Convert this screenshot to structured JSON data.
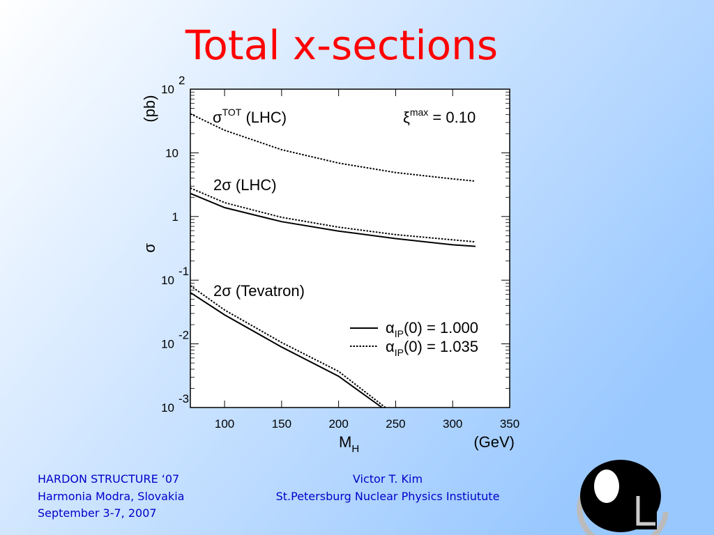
{
  "title": "Total x-sections",
  "footer": {
    "left": [
      "HARDON STRUCTURE ‘07",
      "Harmonia Modra, Slovakia",
      "September 3-7, 2007"
    ],
    "center": [
      "Victor T.  Kim",
      "St.Petersburg Nuclear Physics Instiutute"
    ]
  },
  "chart_data": {
    "type": "line",
    "x_label": "M",
    "x_label_sub": "H",
    "x_unit": "(GeV)",
    "y_label": "σ",
    "y_unit": "(pb)",
    "y_scale": "log",
    "xlim": [
      70,
      350
    ],
    "xticks": [
      100,
      150,
      200,
      250,
      300,
      350
    ],
    "ylim": [
      0.001,
      100
    ],
    "yticks": [
      {
        "value": 100,
        "label": "10",
        "exponent": "2"
      },
      10,
      1,
      {
        "value": 0.1,
        "label": "10",
        "exponent": "-1"
      },
      {
        "value": 0.01,
        "label": "10",
        "exponent": "-2"
      },
      {
        "value": 0.001,
        "label": "10",
        "exponent": "-3"
      }
    ],
    "annotations": [
      {
        "symbol": "σ",
        "sup": "TOT",
        "text": " (LHC)"
      },
      {
        "symbol": "ξ",
        "sup": "max",
        "text": " = 0.10"
      },
      {
        "text": "2σ (LHC)"
      },
      {
        "text": "2σ (Tevatron)"
      }
    ],
    "legend": [
      {
        "symbol": "α",
        "sub": "IP",
        "text": "(0) = 1.000",
        "style": "solid"
      },
      {
        "symbol": "α",
        "sub": "IP",
        "text": "(0) = 1.035",
        "style": "dotted"
      }
    ],
    "series": [
      {
        "style": "dotted",
        "color": "#000000",
        "x": [
          70,
          100,
          150,
          200,
          250,
          300,
          320
        ],
        "values": [
          41,
          22.6,
          11.2,
          6.9,
          4.9,
          3.9,
          3.6
        ]
      },
      {
        "style": "solid",
        "color": "#000000",
        "x": [
          70,
          100,
          150,
          200,
          250,
          300,
          320
        ],
        "values": [
          2.3,
          1.38,
          0.83,
          0.59,
          0.45,
          0.36,
          0.34
        ]
      },
      {
        "style": "dotted",
        "color": "#000000",
        "x": [
          70,
          100,
          150,
          200,
          250,
          300,
          320
        ],
        "values": [
          2.8,
          1.65,
          0.97,
          0.68,
          0.52,
          0.43,
          0.4
        ]
      },
      {
        "style": "solid",
        "color": "#000000",
        "x": [
          70,
          100,
          150,
          200,
          238
        ],
        "values": [
          0.064,
          0.0285,
          0.0089,
          0.0031,
          0.001
        ]
      },
      {
        "style": "dotted",
        "color": "#000000",
        "x": [
          70,
          100,
          150,
          200,
          241
        ],
        "values": [
          0.082,
          0.034,
          0.0105,
          0.0037,
          0.001
        ]
      }
    ]
  }
}
